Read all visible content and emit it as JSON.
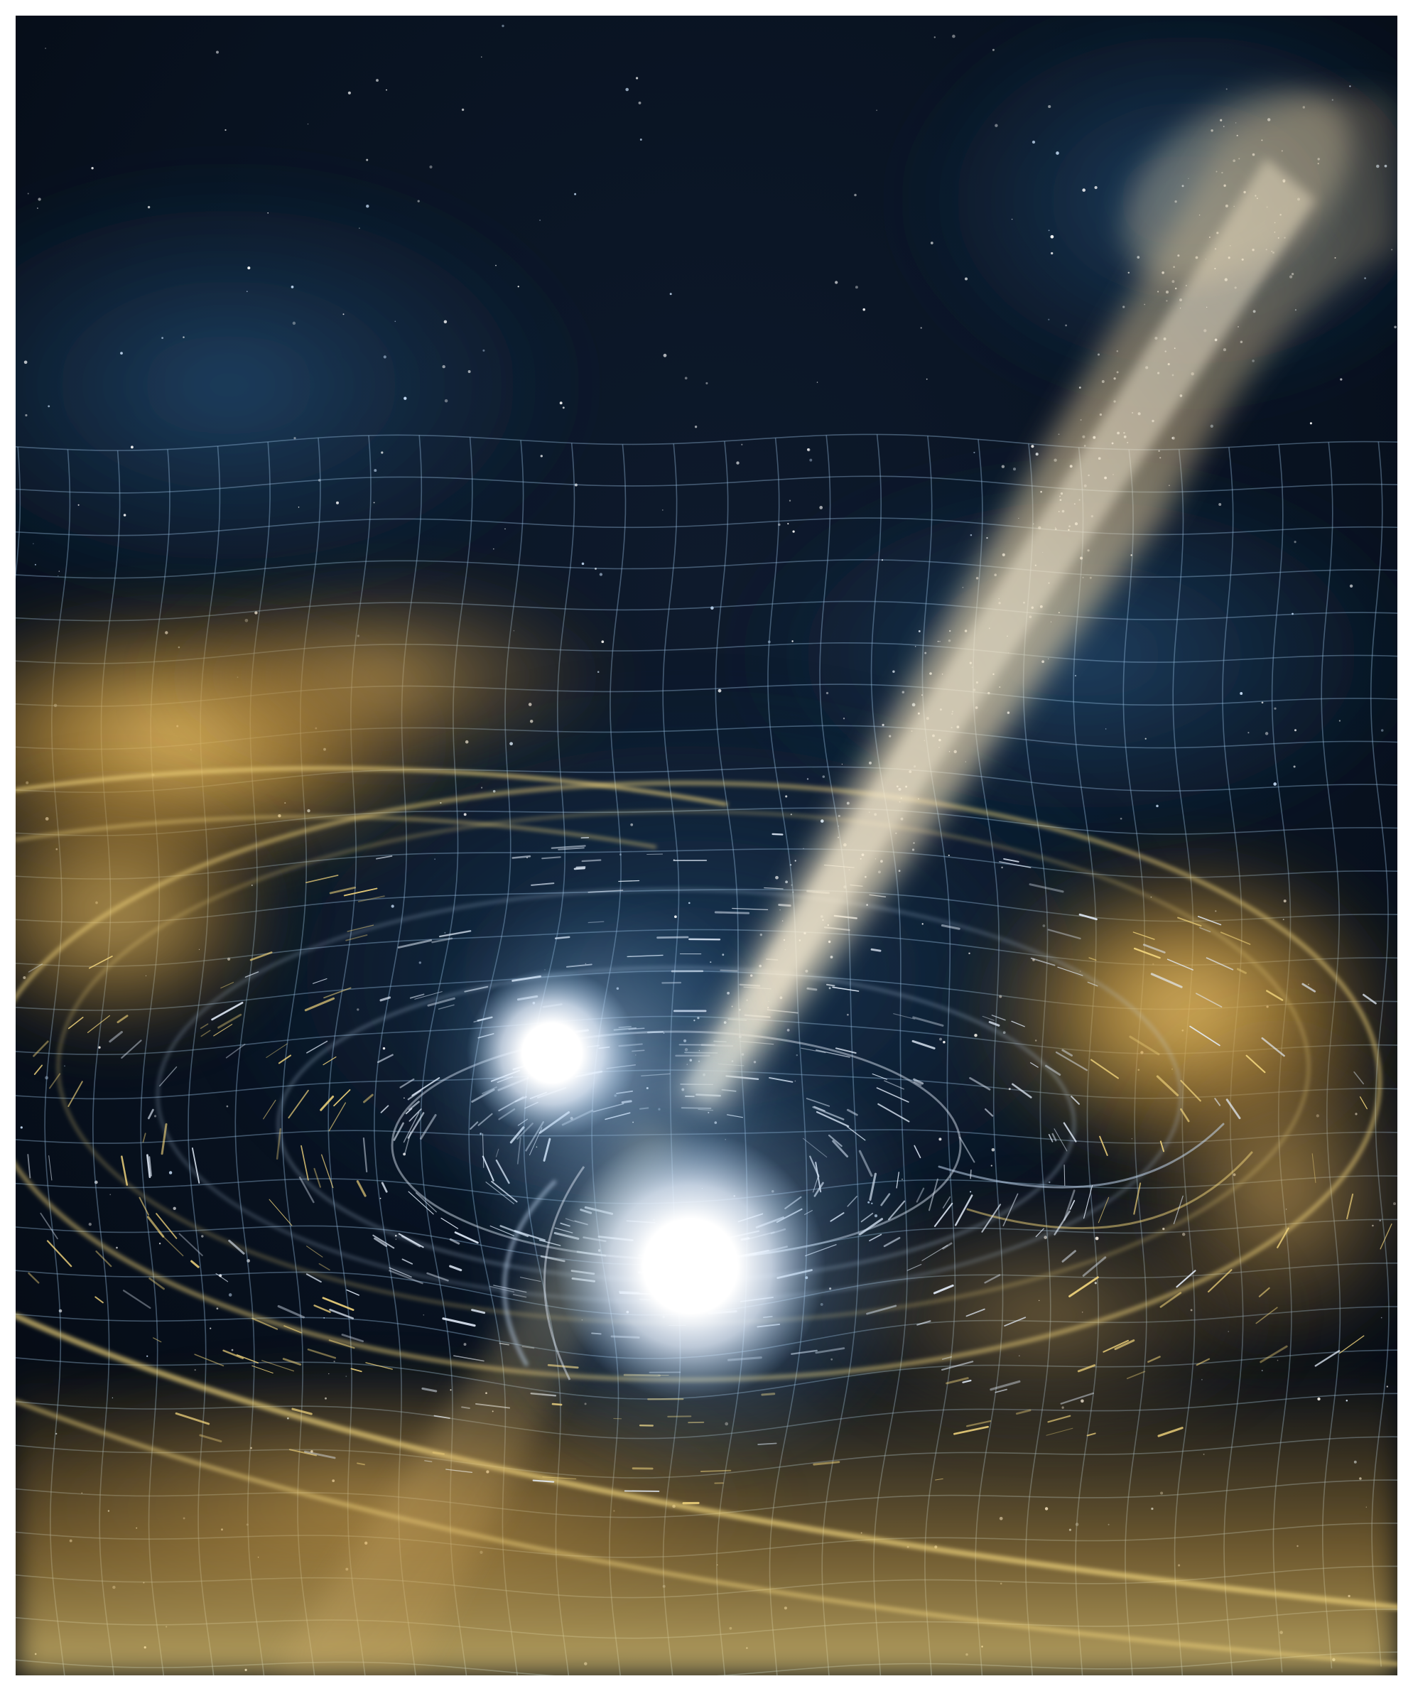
{
  "image": {
    "kind": "artist illustration",
    "visible_text": [],
    "palette": {
      "space": "#050912",
      "nebula_blue": "#1b3c5c",
      "gold_cloud": "#c9973a",
      "gold_highlight": "#f4d77e",
      "jet": "#e8d3a8",
      "star_core": "#ffffff",
      "grid_line": "#9fc6e8",
      "border": "#ffffff"
    },
    "elements": [
      "star-field",
      "spacetime-grid",
      "gold-gas-clouds",
      "swirling-accretion-disk",
      "relativistic-jet",
      "neutron-star-small",
      "neutron-star-large"
    ]
  }
}
